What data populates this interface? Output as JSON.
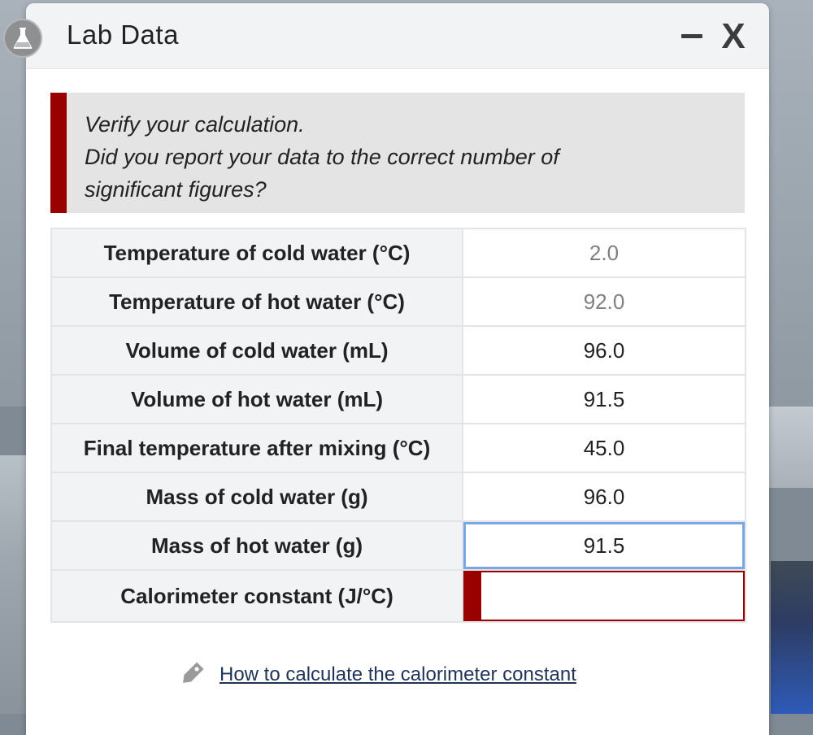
{
  "window": {
    "title": "Lab Data",
    "app_icon": "flask-icon",
    "minimize_icon": "minimize-icon",
    "close_label": "X"
  },
  "alert": {
    "lines": [
      "Verify your calculation.",
      "Did you report your data to the correct number of",
      "significant figures?"
    ],
    "accent_color": "#990000"
  },
  "table": {
    "rows": [
      {
        "label": "Temperature of cold water (°C)",
        "value": "2.0"
      },
      {
        "label": "Temperature of hot water (°C)",
        "value": "92.0"
      },
      {
        "label": "Volume of cold water (mL)",
        "value": "96.0"
      },
      {
        "label": "Volume of hot water (mL)",
        "value": "91.5"
      },
      {
        "label": "Final temperature after mixing (°C)",
        "value": "45.0"
      },
      {
        "label": "Mass of cold water (g)",
        "value": "96.0"
      },
      {
        "label": "Mass of hot water (g)",
        "value": "91.5"
      },
      {
        "label": "Calorimeter constant (J/°C)",
        "value": ""
      }
    ]
  },
  "help": {
    "icon": "tag-icon",
    "link_text": "How to calculate the calorimeter constant"
  },
  "colors": {
    "error": "#990000",
    "focus": "#78a7e6",
    "link": "#1f3358"
  }
}
